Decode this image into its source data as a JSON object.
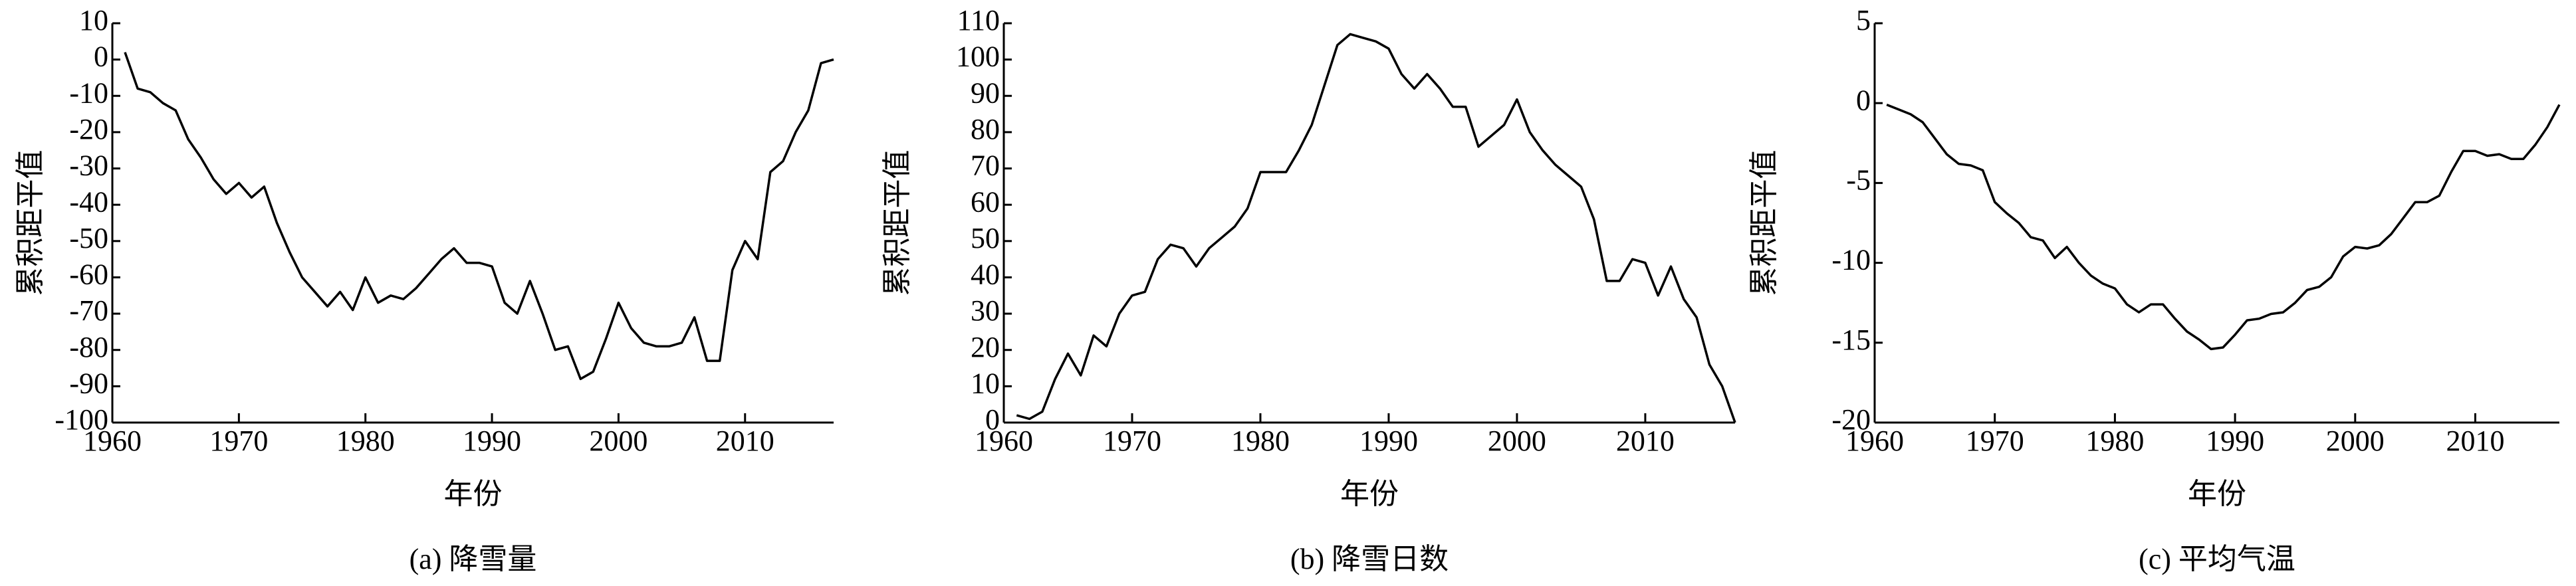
{
  "chart_data": [
    {
      "type": "line",
      "caption": "(a) 降雪量",
      "xlabel": "年份",
      "ylabel": "累积距平值",
      "color": "#000000",
      "xlim": [
        1960,
        2017
      ],
      "xticks": [
        1960,
        1970,
        1980,
        1990,
        2000,
        2010
      ],
      "ylim": [
        -100,
        10
      ],
      "yticks": [
        -100,
        -90,
        -80,
        -70,
        -60,
        -50,
        -40,
        -30,
        -20,
        -10,
        0,
        10
      ],
      "grid": false,
      "x": [
        1961,
        1962,
        1963,
        1964,
        1965,
        1966,
        1967,
        1968,
        1969,
        1970,
        1971,
        1972,
        1973,
        1974,
        1975,
        1976,
        1977,
        1978,
        1979,
        1980,
        1981,
        1982,
        1983,
        1984,
        1985,
        1986,
        1987,
        1988,
        1989,
        1990,
        1991,
        1992,
        1993,
        1994,
        1995,
        1996,
        1997,
        1998,
        1999,
        2000,
        2001,
        2002,
        2003,
        2004,
        2005,
        2006,
        2007,
        2008,
        2009,
        2010,
        2011,
        2012,
        2013,
        2014,
        2015,
        2016,
        2017
      ],
      "values": [
        2,
        -8,
        -9,
        -12,
        -14,
        -22,
        -27,
        -33,
        -37,
        -34,
        -38,
        -35,
        -45,
        -53,
        -60,
        -64,
        -68,
        -64,
        -69,
        -60,
        -67,
        -65,
        -66,
        -63,
        -59,
        -55,
        -52,
        -56,
        -56,
        -57,
        -67,
        -70,
        -61,
        -70,
        -80,
        -79,
        -88,
        -86,
        -77,
        -67,
        -74,
        -78,
        -79,
        -79,
        -78,
        -71,
        -83,
        -83,
        -58,
        -50,
        -55,
        -31,
        -28,
        -20,
        -14,
        -1,
        0
      ]
    },
    {
      "type": "line",
      "caption": "(b) 降雪日数",
      "xlabel": "年份",
      "ylabel": "累积距平值",
      "color": "#000000",
      "xlim": [
        1960,
        2017
      ],
      "xticks": [
        1960,
        1970,
        1980,
        1990,
        2000,
        2010
      ],
      "ylim": [
        0,
        110
      ],
      "yticks": [
        0,
        10,
        20,
        30,
        40,
        50,
        60,
        70,
        80,
        90,
        100,
        110
      ],
      "grid": false,
      "x": [
        1961,
        1962,
        1963,
        1964,
        1965,
        1966,
        1967,
        1968,
        1969,
        1970,
        1971,
        1972,
        1973,
        1974,
        1975,
        1976,
        1977,
        1978,
        1979,
        1980,
        1981,
        1982,
        1983,
        1984,
        1985,
        1986,
        1987,
        1988,
        1989,
        1990,
        1991,
        1992,
        1993,
        1994,
        1995,
        1996,
        1997,
        1998,
        1999,
        2000,
        2001,
        2002,
        2003,
        2004,
        2005,
        2006,
        2007,
        2008,
        2009,
        2010,
        2011,
        2012,
        2013,
        2014,
        2015,
        2016,
        2017
      ],
      "values": [
        2,
        1,
        3,
        12,
        19,
        13,
        24,
        21,
        30,
        35,
        36,
        45,
        49,
        48,
        43,
        48,
        51,
        54,
        59,
        69,
        69,
        69,
        75,
        82,
        93,
        104,
        107,
        106,
        105,
        103,
        96,
        92,
        96,
        92,
        87,
        87,
        76,
        79,
        82,
        89,
        80,
        75,
        71,
        68,
        65,
        56,
        39,
        39,
        45,
        44,
        35,
        43,
        34,
        29,
        16,
        10,
        0
      ]
    },
    {
      "type": "line",
      "caption": "(c) 平均气温",
      "xlabel": "年份",
      "ylabel": "累积距平值",
      "color": "#000000",
      "xlim": [
        1960,
        2017
      ],
      "xticks": [
        1960,
        1970,
        1980,
        1990,
        2000,
        2010
      ],
      "ylim": [
        -20,
        5
      ],
      "yticks": [
        -20,
        -15,
        -10,
        -5,
        0,
        5
      ],
      "grid": false,
      "x": [
        1961,
        1962,
        1963,
        1964,
        1965,
        1966,
        1967,
        1968,
        1969,
        1970,
        1971,
        1972,
        1973,
        1974,
        1975,
        1976,
        1977,
        1978,
        1979,
        1980,
        1981,
        1982,
        1983,
        1984,
        1985,
        1986,
        1987,
        1988,
        1989,
        1990,
        1991,
        1992,
        1993,
        1994,
        1995,
        1996,
        1997,
        1998,
        1999,
        2000,
        2001,
        2002,
        2003,
        2004,
        2005,
        2006,
        2007,
        2008,
        2009,
        2010,
        2011,
        2012,
        2013,
        2014,
        2015,
        2016,
        2017
      ],
      "values": [
        -0.1,
        -0.4,
        -0.7,
        -1.2,
        -2.2,
        -3.2,
        -3.8,
        -3.9,
        -4.2,
        -6.2,
        -6.9,
        -7.5,
        -8.4,
        -8.6,
        -9.7,
        -9.0,
        -10.0,
        -10.8,
        -11.3,
        -11.6,
        -12.6,
        -13.1,
        -12.6,
        -12.6,
        -13.5,
        -14.3,
        -14.8,
        -15.4,
        -15.3,
        -14.5,
        -13.6,
        -13.5,
        -13.2,
        -13.1,
        -12.5,
        -11.7,
        -11.5,
        -10.9,
        -9.6,
        -9.0,
        -9.1,
        -8.9,
        -8.2,
        -7.2,
        -6.2,
        -6.2,
        -5.8,
        -4.3,
        -3.0,
        -3.0,
        -3.3,
        -3.2,
        -3.5,
        -3.5,
        -2.6,
        -1.5,
        -0.1
      ]
    }
  ]
}
